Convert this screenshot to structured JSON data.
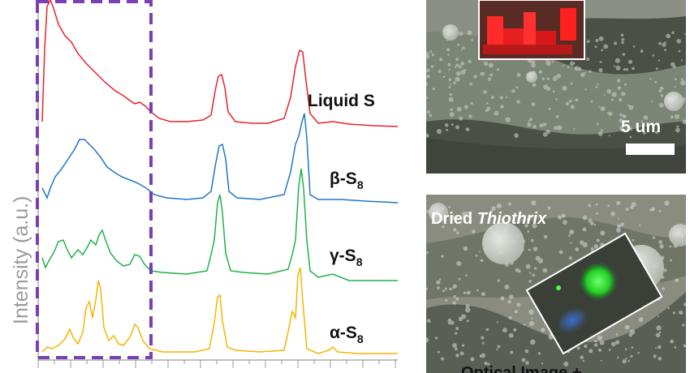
{
  "plot": {
    "ylabel": "Intensity (a.u.)",
    "series": [
      {
        "name": "Liquid S",
        "color": "#e8212b"
      },
      {
        "name": "β-S",
        "subscript": "8",
        "color": "#1f77c4"
      },
      {
        "name": "γ-S",
        "subscript": "8",
        "color": "#20b14a"
      },
      {
        "name": "α-S",
        "subscript": "8",
        "color": "#f5b400"
      }
    ],
    "highlight_box_color": "#7b3fb5"
  },
  "top_image": {
    "scale_bar_label": "5 um"
  },
  "bottom_image": {
    "caption_prefix": "Dried ",
    "caption_italic": "Thiothrix",
    "bottom_caption": "Optical Image +"
  }
}
